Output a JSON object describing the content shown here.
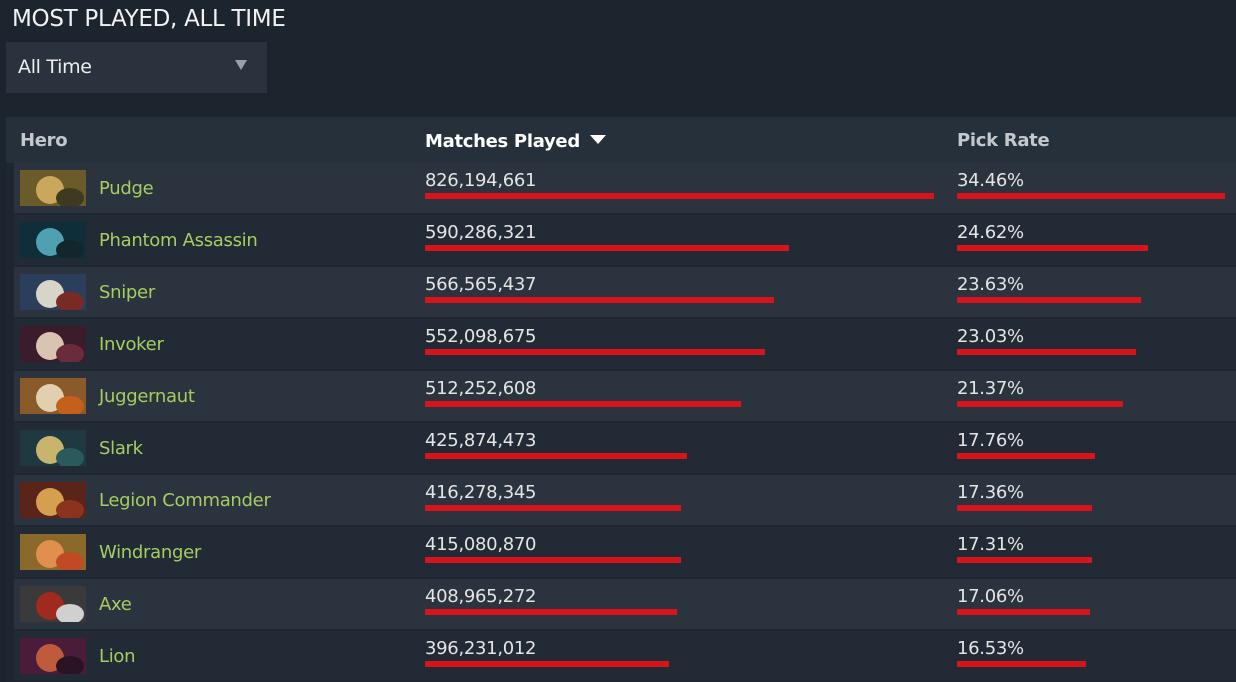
{
  "header": {
    "title": "MOST PLAYED, ALL TIME"
  },
  "filter": {
    "selected": "All Time",
    "icon": "chevron-down-icon"
  },
  "table": {
    "columns": {
      "hero": "Hero",
      "matches": "Matches Played",
      "pick_rate": "Pick Rate"
    },
    "sorted_by": "matches",
    "rows": [
      {
        "hero": "Pudge",
        "matches": "826,194,661",
        "pick_rate": "34.46%",
        "matches_value": 826194661,
        "pick_rate_value": 34.46,
        "colors": [
          "#6b5a2a",
          "#c9a85c",
          "#3d3a20"
        ]
      },
      {
        "hero": "Phantom Assassin",
        "matches": "590,286,321",
        "pick_rate": "24.62%",
        "matches_value": 590286321,
        "pick_rate_value": 24.62,
        "colors": [
          "#0e2f3a",
          "#4fa0b0",
          "#13262e"
        ]
      },
      {
        "hero": "Sniper",
        "matches": "566,565,437",
        "pick_rate": "23.63%",
        "matches_value": 566565437,
        "pick_rate_value": 23.63,
        "colors": [
          "#2b3f5c",
          "#d9d4c8",
          "#7a2a24"
        ]
      },
      {
        "hero": "Invoker",
        "matches": "552,098,675",
        "pick_rate": "23.03%",
        "matches_value": 552098675,
        "pick_rate_value": 23.03,
        "colors": [
          "#3a1c2a",
          "#d8c4b0",
          "#6a2c3c"
        ]
      },
      {
        "hero": "Juggernaut",
        "matches": "512,252,608",
        "pick_rate": "21.37%",
        "matches_value": 512252608,
        "pick_rate_value": 21.37,
        "colors": [
          "#8a5a2a",
          "#e0d0b0",
          "#c4601c"
        ]
      },
      {
        "hero": "Slark",
        "matches": "425,874,473",
        "pick_rate": "17.76%",
        "matches_value": 425874473,
        "pick_rate_value": 17.76,
        "colors": [
          "#1e3a40",
          "#c8b46c",
          "#2a5a5c"
        ]
      },
      {
        "hero": "Legion Commander",
        "matches": "416,278,345",
        "pick_rate": "17.36%",
        "matches_value": 416278345,
        "pick_rate_value": 17.36,
        "colors": [
          "#5a2418",
          "#d4a050",
          "#8a3420"
        ]
      },
      {
        "hero": "Windranger",
        "matches": "415,080,870",
        "pick_rate": "17.31%",
        "matches_value": 415080870,
        "pick_rate_value": 17.31,
        "colors": [
          "#8a6a2a",
          "#e0904c",
          "#c04a24"
        ]
      },
      {
        "hero": "Axe",
        "matches": "408,965,272",
        "pick_rate": "17.06%",
        "matches_value": 408965272,
        "pick_rate_value": 17.06,
        "colors": [
          "#3a3a3a",
          "#a02a20",
          "#d0d0d0"
        ]
      },
      {
        "hero": "Lion",
        "matches": "396,231,012",
        "pick_rate": "16.53%",
        "matches_value": 396231012,
        "pick_rate_value": 16.53,
        "colors": [
          "#4a1c3a",
          "#c05a3c",
          "#2a1424"
        ]
      }
    ]
  }
}
